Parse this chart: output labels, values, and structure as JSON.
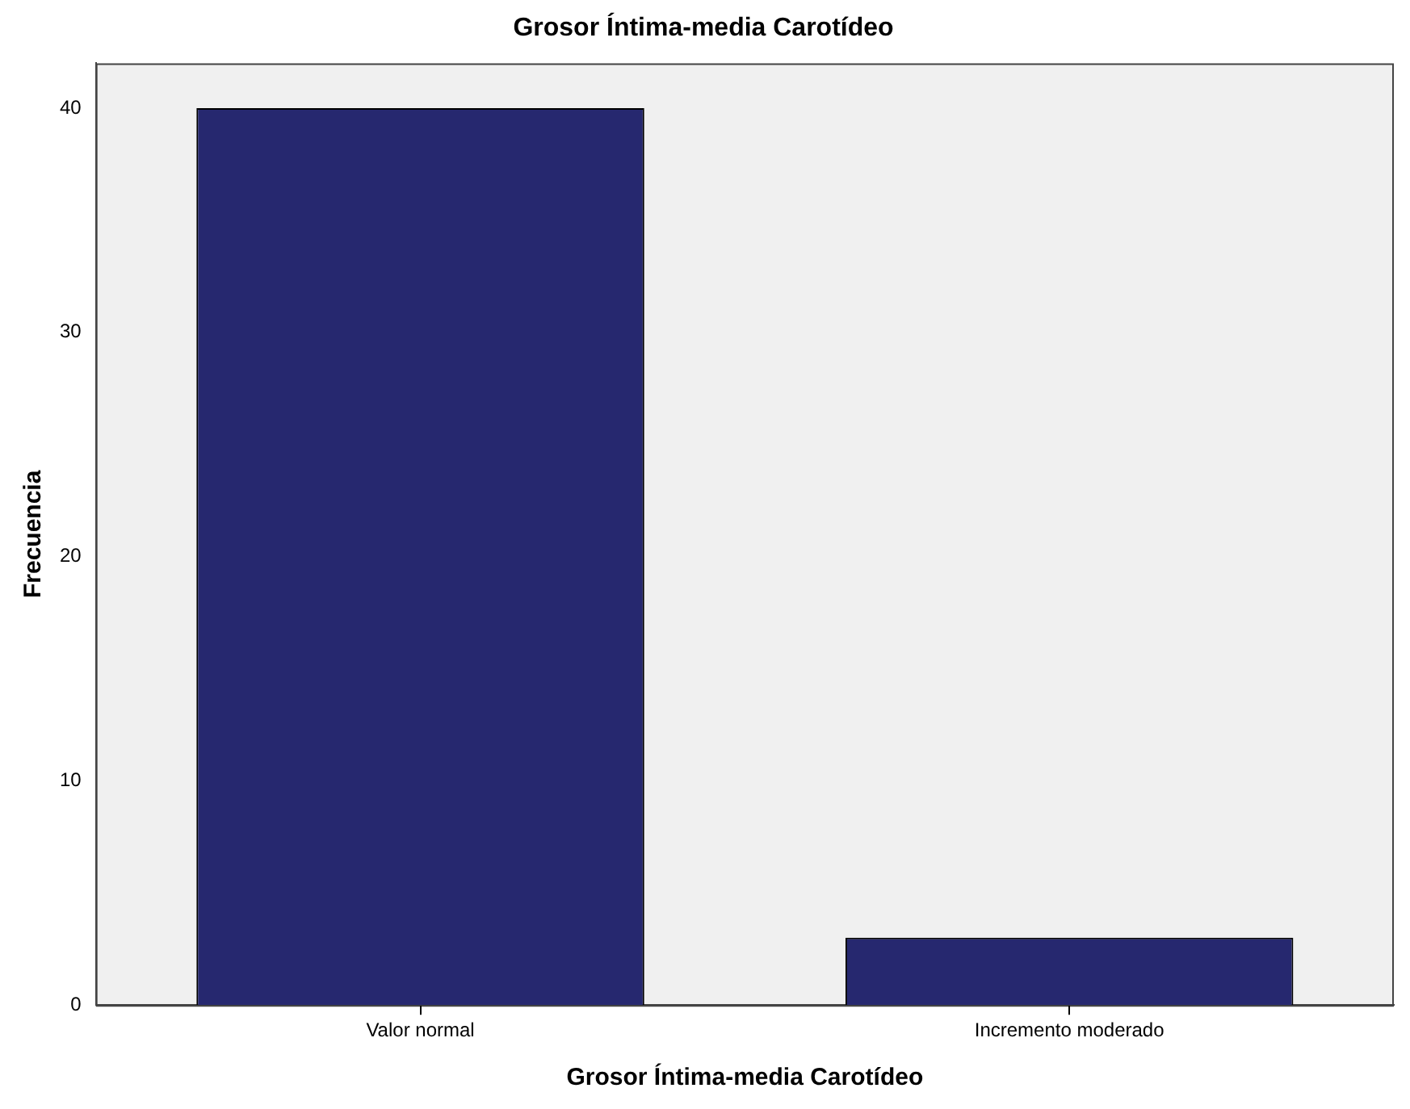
{
  "chart_data": {
    "type": "bar",
    "title": "Grosor Íntima-media Carotídeo",
    "xlabel": "Grosor Íntima-media Carotídeo",
    "ylabel": "Frecuencia",
    "categories": [
      "Valor normal",
      "Incremento moderado"
    ],
    "values": [
      40,
      3
    ],
    "color": "#26286f",
    "ylim": [
      0,
      42
    ],
    "yticks": [
      0,
      10,
      20,
      30,
      40
    ],
    "grid": false,
    "legend": false
  }
}
